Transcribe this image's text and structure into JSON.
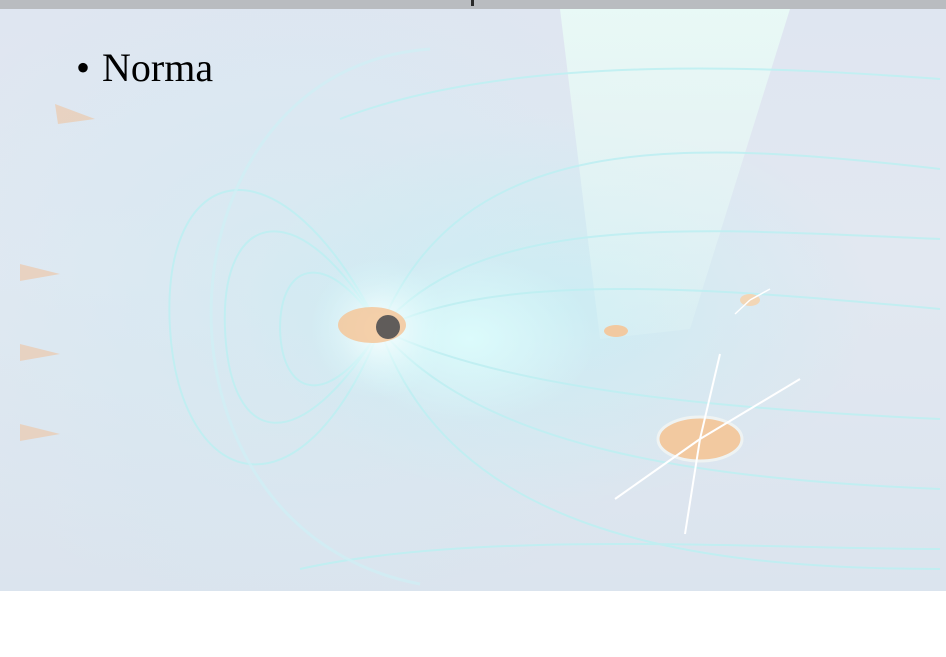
{
  "slide": {
    "bullets": [
      {
        "marker": "•",
        "text": "Norma"
      }
    ],
    "background_image": "magnetosphere-illustration",
    "colors": {
      "top_bar": "#b9bcc0",
      "slide_background": "#e2e8f1",
      "field_lines": "#c9f3f4",
      "glow": "#dffcfc",
      "text": "#000000"
    }
  }
}
